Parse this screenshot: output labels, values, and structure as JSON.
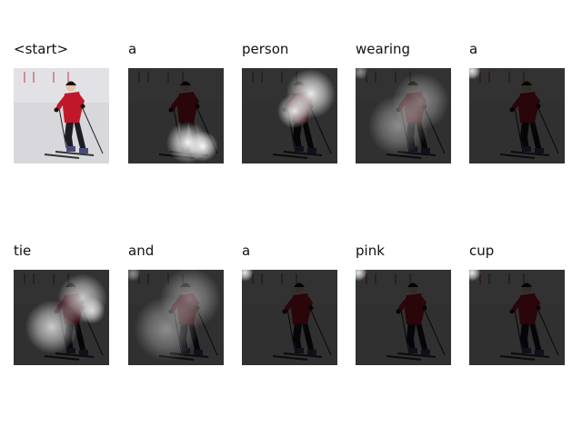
{
  "caption": {
    "tokens": [
      {
        "word": "<start>",
        "original": true,
        "attention": null
      },
      {
        "word": "a",
        "original": false,
        "attention": "skis-lower"
      },
      {
        "word": "person",
        "original": false,
        "attention": "upper-right"
      },
      {
        "word": "wearing",
        "original": false,
        "attention": "diffuse-right"
      },
      {
        "word": "a",
        "original": false,
        "attention": "top-left-corner"
      },
      {
        "word": "tie",
        "original": false,
        "attention": "torso"
      },
      {
        "word": "and",
        "original": false,
        "attention": "diffuse-wide"
      },
      {
        "word": "a",
        "original": false,
        "attention": "top-left-corner"
      },
      {
        "word": "pink",
        "original": false,
        "attention": "top-left-corner"
      },
      {
        "word": "cup",
        "original": false,
        "attention": "top-left-corner"
      }
    ]
  },
  "colors": {
    "snow": "#d8d8dc",
    "jacket": "#c0182a",
    "pants": "#1c1c24",
    "dark_overlay": "#000000"
  }
}
